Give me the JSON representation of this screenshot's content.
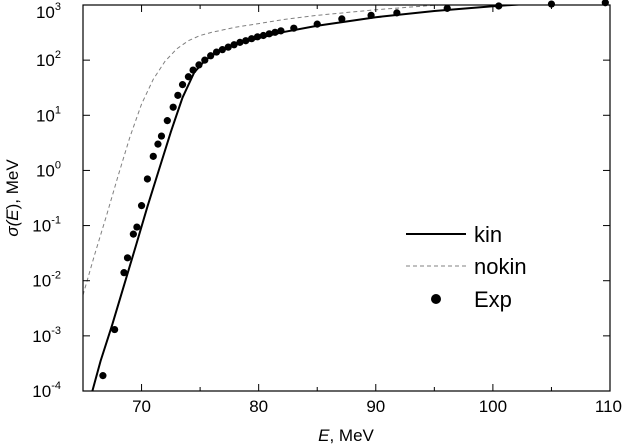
{
  "chart_data": {
    "type": "line",
    "title": "",
    "xlabel": {
      "var": "E",
      "rest": ", MeV"
    },
    "ylabel": {
      "pre": "σ(",
      "var": "E",
      "post": "), MeV"
    },
    "xlim": [
      65,
      110
    ],
    "ylim": [
      0.0001,
      1000
    ],
    "yscale": "log",
    "x_ticks": [
      70,
      80,
      90,
      100,
      110
    ],
    "y_ticks": [
      {
        "value": 0.0001,
        "base": "10",
        "exp": "-4"
      },
      {
        "value": 0.001,
        "base": "10",
        "exp": "-3"
      },
      {
        "value": 0.01,
        "base": "10",
        "exp": "-2"
      },
      {
        "value": 0.1,
        "base": "10",
        "exp": "-1"
      },
      {
        "value": 1,
        "base": "10",
        "exp": "0"
      },
      {
        "value": 10,
        "base": "10",
        "exp": "1"
      },
      {
        "value": 100,
        "base": "10",
        "exp": "2"
      },
      {
        "value": 1000,
        "base": "10",
        "exp": "3"
      }
    ],
    "grid": false,
    "legend_position": "center-right",
    "series": [
      {
        "name": "kin",
        "style": "solid",
        "x": [
          65.8,
          66.5,
          67.5,
          68.5,
          69.5,
          70.5,
          71.5,
          72.5,
          73.5,
          74.5,
          75.5,
          76.5,
          77.5,
          78.5,
          80,
          82,
          85,
          90,
          95,
          100,
          105,
          110
        ],
        "y": [
          0.0001,
          0.00035,
          0.0016,
          0.0082,
          0.042,
          0.22,
          1.05,
          5.0,
          21,
          60,
          103,
          140,
          175,
          205,
          250,
          320,
          420,
          600,
          780,
          950,
          1120,
          1300
        ]
      },
      {
        "name": "nokin",
        "style": "dashed",
        "x": [
          65,
          66,
          67,
          68,
          69,
          70,
          71,
          72,
          73,
          74,
          75,
          76,
          77,
          78,
          80,
          82,
          85,
          90,
          95,
          100,
          105,
          110
        ],
        "y": [
          0.0055,
          0.03,
          0.15,
          0.8,
          4.0,
          16,
          45,
          95,
          160,
          225,
          280,
          320,
          355,
          395,
          460,
          540,
          650,
          820,
          990,
          1160,
          1330,
          1500
        ]
      },
      {
        "name": "Exp",
        "style": "points",
        "x": [
          66.7,
          67.7,
          68.5,
          68.8,
          69.3,
          69.6,
          70.0,
          70.5,
          71.0,
          71.4,
          71.7,
          72.2,
          72.7,
          73.1,
          73.5,
          74.0,
          74.4,
          74.9,
          75.4,
          75.9,
          76.4,
          76.9,
          77.4,
          77.9,
          78.4,
          78.9,
          79.4,
          79.9,
          80.4,
          80.9,
          81.4,
          81.9,
          83.0,
          85.0,
          87.1,
          89.6,
          91.8,
          96.1,
          100.5,
          105.0,
          109.6
        ],
        "y": [
          0.00019,
          0.0013,
          0.014,
          0.026,
          0.07,
          0.094,
          0.23,
          0.7,
          1.8,
          3.0,
          4.2,
          8.0,
          14,
          23,
          36,
          50,
          66,
          82,
          100,
          120,
          140,
          155,
          172,
          190,
          210,
          225,
          245,
          265,
          280,
          300,
          320,
          340,
          380,
          450,
          560,
          650,
          720,
          870,
          960,
          1040,
          1100
        ]
      }
    ]
  }
}
